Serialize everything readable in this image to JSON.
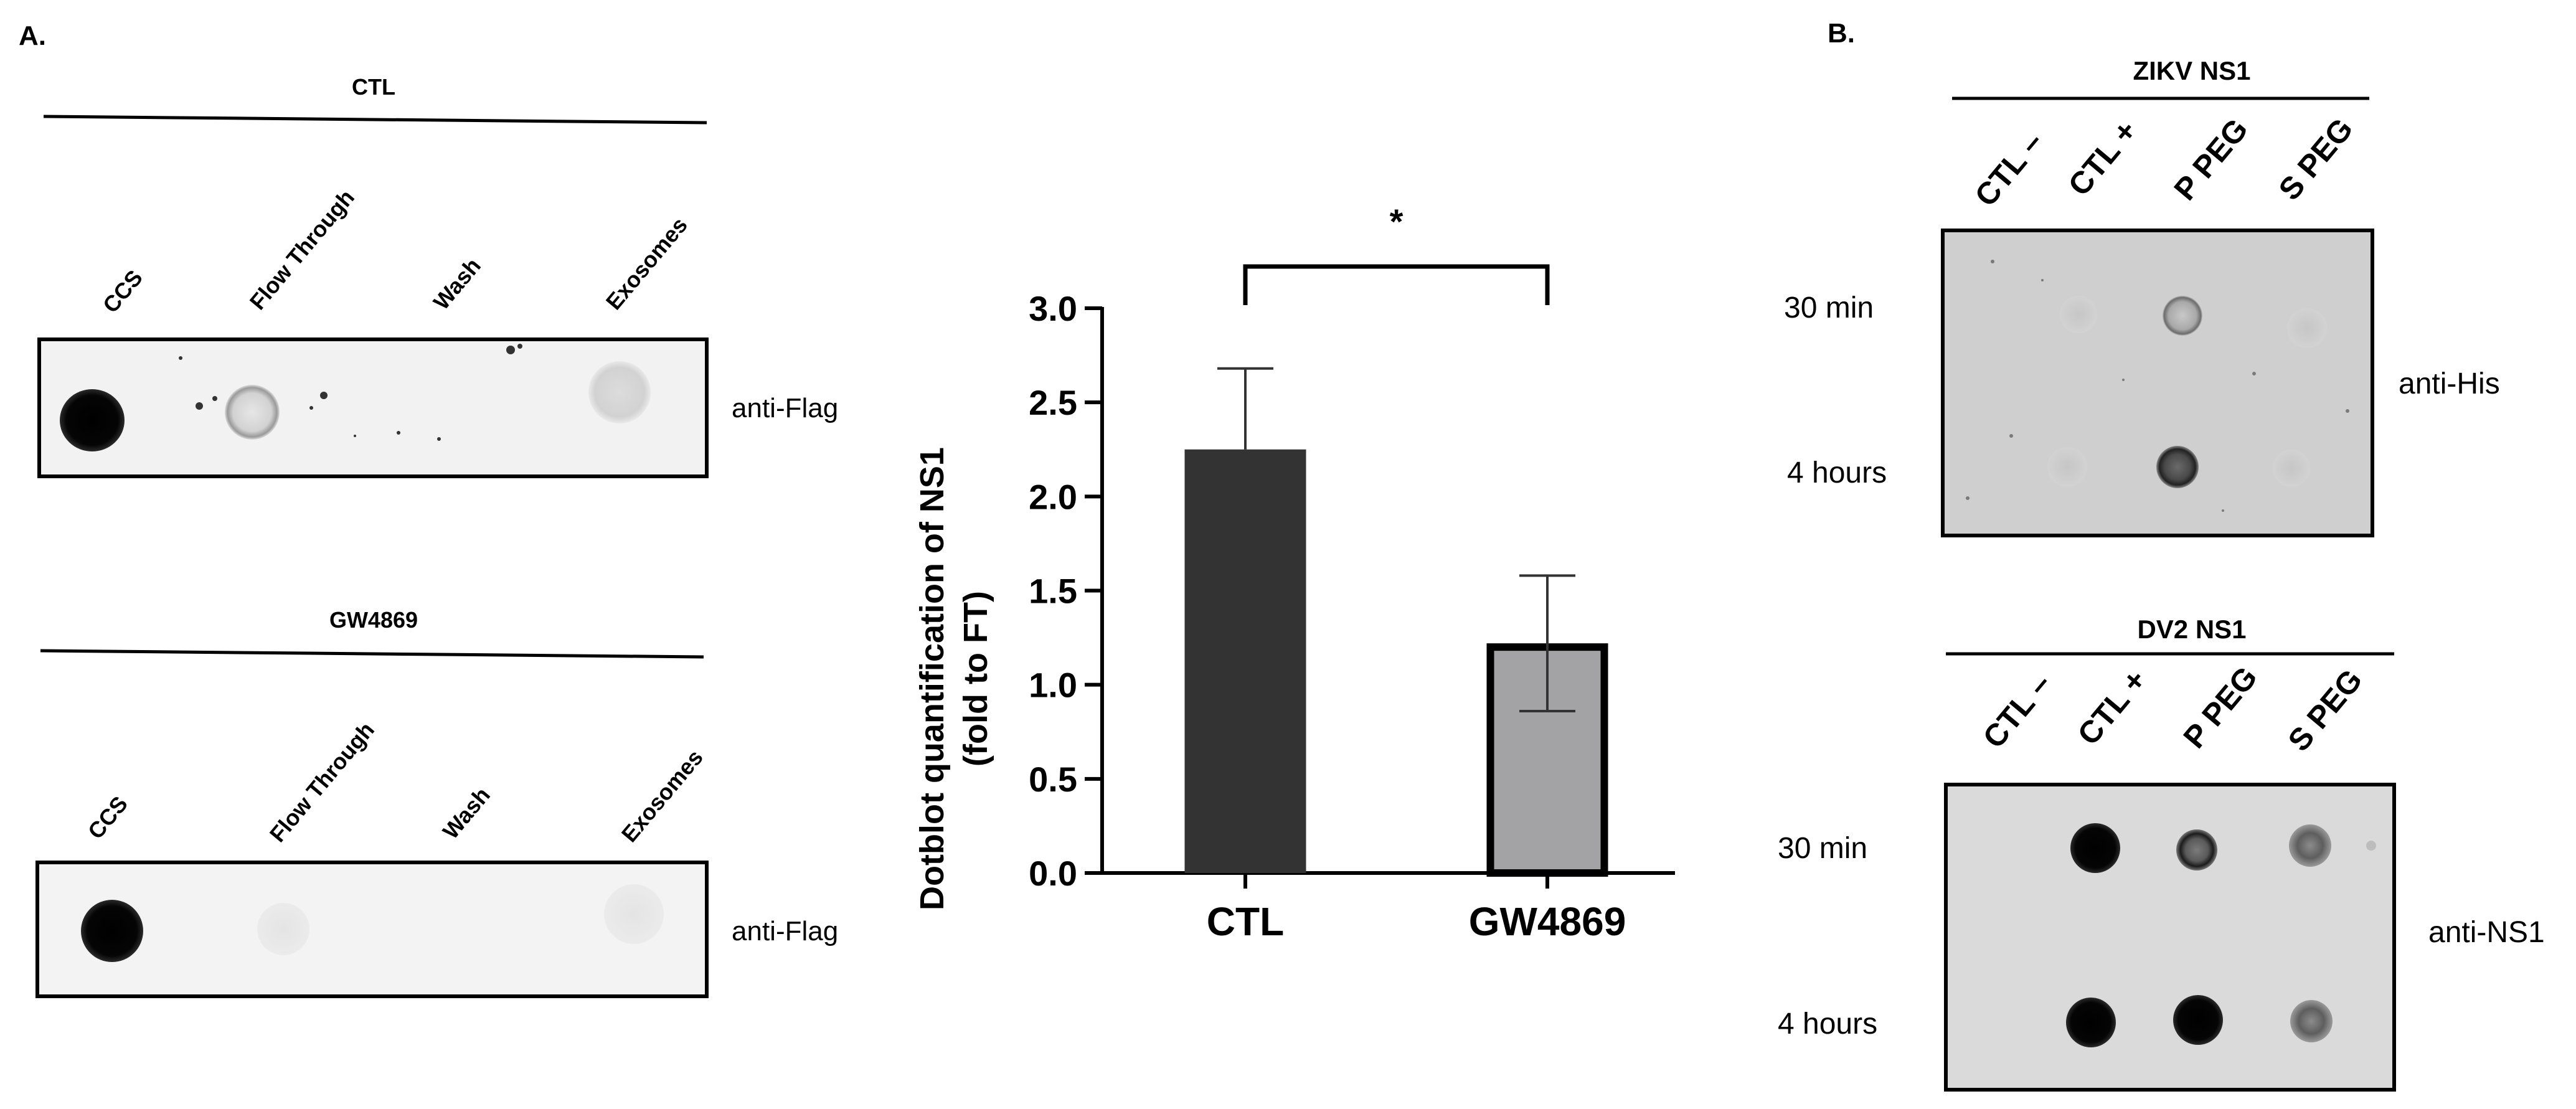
{
  "panel_a": {
    "label": "A.",
    "blot_ctl": {
      "group_label": "CTL",
      "lanes": [
        "CCS",
        "Flow Through",
        "Wash",
        "Exosomes"
      ],
      "antibody": "anti-Flag"
    },
    "blot_gw": {
      "group_label": "GW4869",
      "lanes": [
        "CCS",
        "Flow Through",
        "Wash",
        "Exosomes"
      ],
      "antibody": "anti-Flag"
    }
  },
  "chart_data": {
    "type": "bar",
    "categories": [
      "CTL",
      "GW4869"
    ],
    "values": [
      2.25,
      1.22
    ],
    "errors": [
      0.43,
      0.36
    ],
    "ylabel_line1": "Dotblot quantification of NS1",
    "ylabel_line2": "(fold to FT)",
    "ylim": [
      0,
      3.0
    ],
    "yticks": [
      "0.0",
      "0.5",
      "1.0",
      "1.5",
      "2.0",
      "2.5",
      "3.0"
    ],
    "significance": "*",
    "bar_colors": [
      "#333333",
      "#a3a3a6"
    ],
    "grid": false
  },
  "panel_b": {
    "label": "B.",
    "blot_zikv": {
      "title": "ZIKV NS1",
      "lanes": [
        "CTL –",
        "CTL +",
        "P PEG",
        "S PEG"
      ],
      "rows": [
        "30 min",
        "4 hours"
      ],
      "antibody": "anti-His"
    },
    "blot_dv2": {
      "title": "DV2 NS1",
      "lanes": [
        "CTL –",
        "CTL +",
        "P PEG",
        "S PEG"
      ],
      "rows": [
        "30 min",
        "4 hours"
      ],
      "antibody": "anti-NS1"
    }
  }
}
